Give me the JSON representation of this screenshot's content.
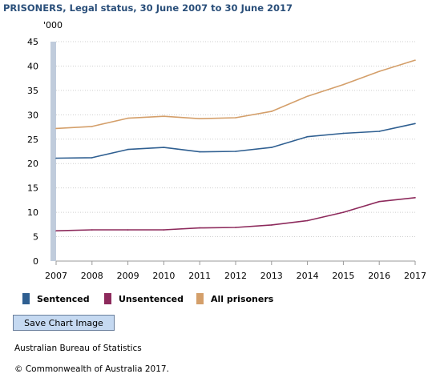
{
  "chart_data": {
    "type": "line",
    "title": "PRISONERS, Legal status, 30 June 2007 to 30 June 2017",
    "ylabel": "'000",
    "xlabel": "",
    "x": [
      "2007",
      "2008",
      "2009",
      "2010",
      "2011",
      "2012",
      "2013",
      "2014",
      "2015",
      "2016",
      "2017"
    ],
    "ylim": [
      0,
      45
    ],
    "yticks": [
      "0",
      "5",
      "10",
      "15",
      "20",
      "25",
      "30",
      "35",
      "40",
      "45"
    ],
    "grid": true,
    "legend_position": "bottom",
    "series": [
      {
        "name": "Sentenced",
        "color": "#2f5f91",
        "values": [
          21.1,
          21.2,
          22.9,
          23.3,
          22.4,
          22.5,
          23.3,
          25.5,
          26.2,
          26.6,
          28.2
        ]
      },
      {
        "name": "Unsentenced",
        "color": "#8d2a5c",
        "values": [
          6.2,
          6.4,
          6.4,
          6.4,
          6.8,
          6.9,
          7.4,
          8.3,
          10.0,
          12.2,
          13.0
        ]
      },
      {
        "name": "All prisoners",
        "color": "#d49f6a",
        "values": [
          27.2,
          27.6,
          29.3,
          29.7,
          29.2,
          29.4,
          30.7,
          33.8,
          36.2,
          38.9,
          41.2
        ]
      }
    ]
  },
  "save_label": "Save Chart Image",
  "source": "Australian Bureau of Statistics",
  "copyright": "© Commonwealth of Australia 2017."
}
